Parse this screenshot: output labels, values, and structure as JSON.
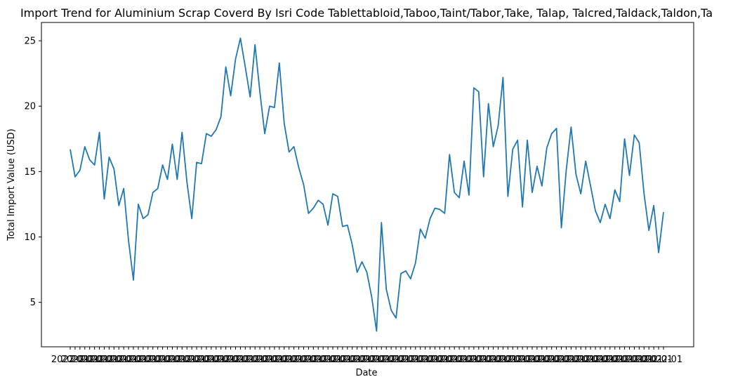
{
  "chart_data": {
    "type": "line",
    "title": "Import Trend for Aluminium Scrap Coverd By Isri Code Tablettabloid,Taboo,Taint/Tabor,Take, Talap, Talcred,Taldack,Taldon,Ta",
    "xlabel": "Date",
    "ylabel": "Total Import Value (USD)",
    "ylim": [
      1.6,
      26.4
    ],
    "yticks": [
      5,
      10,
      15,
      20,
      25
    ],
    "y_tick_labels": [
      "5",
      "10",
      "15",
      "20",
      "25"
    ],
    "x_tick_labels_note": "dense overlapping date tick labels",
    "series_color": "#1f77b4",
    "grid": false,
    "values": [
      16.7,
      14.6,
      15.1,
      16.9,
      15.9,
      15.5,
      18.0,
      12.9,
      16.1,
      15.2,
      12.4,
      13.7,
      9.7,
      6.7,
      12.5,
      11.4,
      11.7,
      13.4,
      13.7,
      15.5,
      14.4,
      17.1,
      14.4,
      18.0,
      14.2,
      11.4,
      15.7,
      15.6,
      17.9,
      17.7,
      18.2,
      19.2,
      23.0,
      20.8,
      23.6,
      25.2,
      23.0,
      20.7,
      24.7,
      21.1,
      17.9,
      20.0,
      19.9,
      23.3,
      18.7,
      16.5,
      16.9,
      15.3,
      14.0,
      11.8,
      12.2,
      12.8,
      12.5,
      10.9,
      13.3,
      13.1,
      10.8,
      10.9,
      9.4,
      7.3,
      8.1,
      7.3,
      5.4,
      2.8,
      11.1,
      6.0,
      4.4,
      3.8,
      7.2,
      7.4,
      6.8,
      8.0,
      10.6,
      9.9,
      11.4,
      12.2,
      12.1,
      11.8,
      16.3,
      13.4,
      13.0,
      15.8,
      13.2,
      21.4,
      21.1,
      14.6,
      20.2,
      16.9,
      18.5,
      22.2,
      13.1,
      16.7,
      17.4,
      12.3,
      17.4,
      13.4,
      15.4,
      13.9,
      16.8,
      17.9,
      18.3,
      10.7,
      15.1,
      18.4,
      14.8,
      13.3,
      15.8,
      13.9,
      12.0,
      11.1,
      12.5,
      11.4,
      13.6,
      12.7,
      17.5,
      14.7,
      17.8,
      17.2,
      13.3,
      10.5,
      12.4,
      8.8,
      11.9
    ]
  }
}
